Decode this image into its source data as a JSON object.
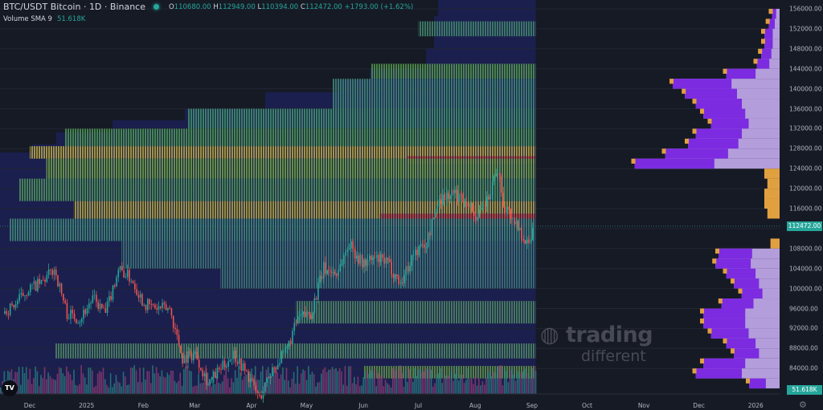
{
  "header": {
    "symbol_title": "BTC/USDT Bitcoin · 1D · Binance",
    "open_label": "O",
    "open": "110680.00",
    "high_label": "H",
    "high": "112949.00",
    "low_label": "L",
    "low": "110394.00",
    "close_label": "C",
    "close": "112472.00",
    "change": "+1793.00 (+1.62%)",
    "indicator_label": "Volume SMA 9",
    "indicator_value": "51.618K"
  },
  "price_axis": {
    "ticks": [
      "156000.00",
      "152000.00",
      "148000.00",
      "144000.00",
      "140000.00",
      "136000.00",
      "132000.00",
      "128000.00",
      "124000.00",
      "120000.00",
      "116000.00",
      "108000.00",
      "104000.00",
      "100000.00",
      "96000.00",
      "92000.00",
      "88000.00",
      "84000.00"
    ],
    "last_price_badge": "112472.00",
    "volume_badge": "51.618K"
  },
  "time_axis": {
    "ticks": [
      {
        "label": "Dec",
        "date": "2024-12-01"
      },
      {
        "label": "2025",
        "date": "2025-01-01"
      },
      {
        "label": "Feb",
        "date": "2025-02-01"
      },
      {
        "label": "Mar",
        "date": "2025-03-01"
      },
      {
        "label": "Apr",
        "date": "2025-04-01"
      },
      {
        "label": "May",
        "date": "2025-05-01"
      },
      {
        "label": "Jun",
        "date": "2025-06-01"
      },
      {
        "label": "Jul",
        "date": "2025-07-01"
      },
      {
        "label": "Aug",
        "date": "2025-08-01"
      },
      {
        "label": "Sep",
        "date": "2025-09-01"
      },
      {
        "label": "Oct",
        "date": "2025-10-01"
      },
      {
        "label": "Nov",
        "date": "2025-11-01"
      },
      {
        "label": "Dec",
        "date": "2025-12-01"
      },
      {
        "label": "2026",
        "date": "2026-01-01"
      }
    ]
  },
  "watermark": {
    "line1": "trading",
    "line2": "different"
  },
  "logo": "TV",
  "colors": {
    "up": "#26a69a",
    "down": "#ef5350",
    "background": "#161a25",
    "heatmap_bg": "#1b1f4e",
    "profile_light": "#b39ddb",
    "profile_dark": "#7c2be0",
    "profile_orange": "#e0a040"
  },
  "chart_data": {
    "type": "candlestick",
    "ylim": [
      78000,
      158000
    ],
    "weekly_closes": [
      [
        "2024-11-17",
        95000
      ],
      [
        "2024-11-24",
        97000
      ],
      [
        "2024-12-01",
        100000
      ],
      [
        "2024-12-08",
        101000
      ],
      [
        "2024-12-15",
        104000
      ],
      [
        "2024-12-22",
        95000
      ],
      [
        "2024-12-29",
        94000
      ],
      [
        "2025-01-05",
        98000
      ],
      [
        "2025-01-12",
        95000
      ],
      [
        "2025-01-19",
        104000
      ],
      [
        "2025-01-26",
        102000
      ],
      [
        "2025-02-02",
        97000
      ],
      [
        "2025-02-09",
        96000
      ],
      [
        "2025-02-16",
        96000
      ],
      [
        "2025-02-23",
        86000
      ],
      [
        "2025-03-02",
        87000
      ],
      [
        "2025-03-09",
        81000
      ],
      [
        "2025-03-16",
        84000
      ],
      [
        "2025-03-23",
        87000
      ],
      [
        "2025-03-30",
        83000
      ],
      [
        "2025-04-06",
        78000
      ],
      [
        "2025-04-13",
        84000
      ],
      [
        "2025-04-20",
        87000
      ],
      [
        "2025-04-27",
        94000
      ],
      [
        "2025-05-04",
        95000
      ],
      [
        "2025-05-11",
        104000
      ],
      [
        "2025-05-18",
        103000
      ],
      [
        "2025-05-25",
        109000
      ],
      [
        "2025-06-01",
        105000
      ],
      [
        "2025-06-08",
        106000
      ],
      [
        "2025-06-15",
        105000
      ],
      [
        "2025-06-22",
        101000
      ],
      [
        "2025-06-29",
        107000
      ],
      [
        "2025-07-06",
        109000
      ],
      [
        "2025-07-13",
        118000
      ],
      [
        "2025-07-20",
        119000
      ],
      [
        "2025-07-27",
        118000
      ],
      [
        "2025-08-03",
        114000
      ],
      [
        "2025-08-10",
        119000
      ],
      [
        "2025-08-14",
        124000
      ],
      [
        "2025-08-17",
        117000
      ],
      [
        "2025-08-24",
        113000
      ],
      [
        "2025-08-31",
        108500
      ],
      [
        "2025-09-02",
        112472
      ]
    ],
    "heatmap_bands": [
      {
        "low": 150500,
        "high": 153500,
        "from": "2025-07-01",
        "color": "#3f7f6a"
      },
      {
        "low": 142000,
        "high": 145000,
        "from": "2025-06-05",
        "color": "#4f8f4a"
      },
      {
        "low": 136000,
        "high": 142000,
        "from": "2025-05-15",
        "color": "#3d7f73"
      },
      {
        "low": 132000,
        "high": 136000,
        "from": "2025-02-25",
        "color": "#3f8a6a"
      },
      {
        "low": 128500,
        "high": 132000,
        "from": "2024-12-20",
        "color": "#4a8f4f"
      },
      {
        "low": 126000,
        "high": 128500,
        "from": "2024-12-01",
        "color": "#b0a040"
      },
      {
        "low": 125000,
        "high": 126500,
        "from": "2025-06-25",
        "color": "#b03a3a"
      },
      {
        "low": 122000,
        "high": 126000,
        "from": "2024-12-10",
        "color": "#6a9a45"
      },
      {
        "low": 117500,
        "high": 122000,
        "from": "2024-11-25",
        "color": "#4a8a58"
      },
      {
        "low": 114000,
        "high": 117500,
        "from": "2024-12-25",
        "color": "#a69a40"
      },
      {
        "low": 112500,
        "high": 115000,
        "from": "2025-06-10",
        "color": "#b03a3a"
      },
      {
        "low": 109500,
        "high": 114000,
        "from": "2024-11-20",
        "color": "#3d7f73"
      },
      {
        "low": 104000,
        "high": 109500,
        "from": "2025-01-20",
        "color": "#3a6f72"
      },
      {
        "low": 100000,
        "high": 104000,
        "from": "2025-03-15",
        "color": "#3a6f72"
      },
      {
        "low": 93000,
        "high": 97500,
        "from": "2025-04-25",
        "color": "#4a7f60"
      },
      {
        "low": 86000,
        "high": 89000,
        "from": "2024-12-15",
        "color": "#4a7f60"
      },
      {
        "low": 82000,
        "high": 84500,
        "from": "2025-06-01",
        "color": "#5a8a45"
      }
    ],
    "volume_profile": [
      [
        155000,
        0.05
      ],
      [
        153000,
        0.07
      ],
      [
        151000,
        0.1
      ],
      [
        149000,
        0.1
      ],
      [
        147000,
        0.12
      ],
      [
        145000,
        0.15
      ],
      [
        143000,
        0.35
      ],
      [
        141000,
        0.7
      ],
      [
        139000,
        0.62
      ],
      [
        137000,
        0.55
      ],
      [
        135000,
        0.5
      ],
      [
        133000,
        0.45
      ],
      [
        131000,
        0.55
      ],
      [
        129000,
        0.6
      ],
      [
        127000,
        0.75
      ],
      [
        125000,
        0.95
      ],
      [
        123000,
        0.1
      ],
      [
        121000,
        0.08
      ],
      [
        119000,
        0.1
      ],
      [
        117000,
        0.1
      ],
      [
        115000,
        0.08
      ],
      [
        109000,
        0.06
      ],
      [
        107000,
        0.4
      ],
      [
        105000,
        0.42
      ],
      [
        103000,
        0.35
      ],
      [
        101000,
        0.3
      ],
      [
        99000,
        0.25
      ],
      [
        97000,
        0.38
      ],
      [
        95000,
        0.5
      ],
      [
        93000,
        0.5
      ],
      [
        91000,
        0.45
      ],
      [
        89000,
        0.35
      ],
      [
        87000,
        0.3
      ],
      [
        85000,
        0.5
      ],
      [
        83000,
        0.55
      ],
      [
        81000,
        0.2
      ]
    ]
  }
}
